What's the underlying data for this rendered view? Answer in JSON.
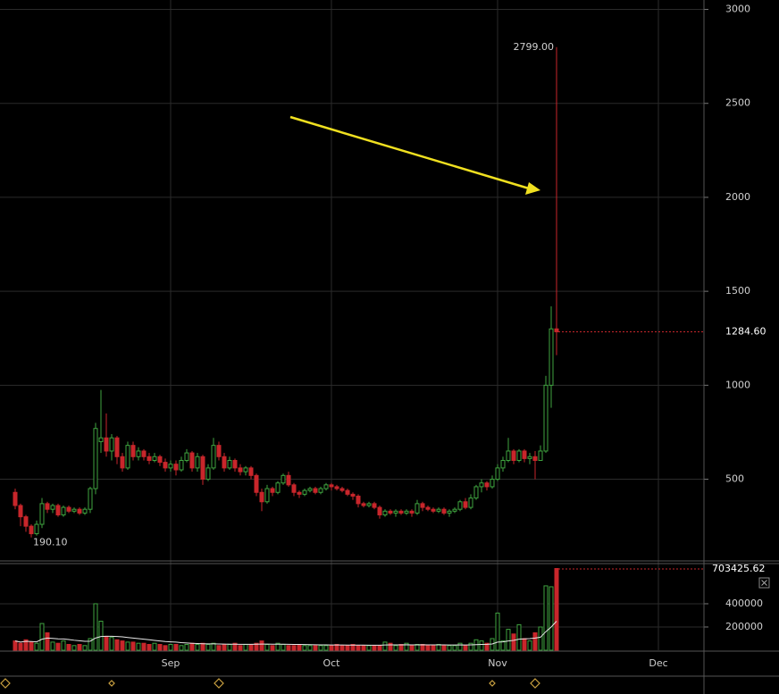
{
  "chart_data": {
    "type": "candlestick",
    "x": [
      0,
      1,
      2,
      3,
      4,
      5,
      6,
      7,
      8,
      9,
      10,
      11,
      12,
      13,
      14,
      15,
      16,
      17,
      18,
      19,
      20,
      21,
      22,
      23,
      24,
      25,
      26,
      27,
      28,
      29,
      30,
      31,
      32,
      33,
      34,
      35,
      36,
      37,
      38,
      39,
      40,
      41,
      42,
      43,
      44,
      45,
      46,
      47,
      48,
      49,
      50,
      51,
      52,
      53,
      54,
      55,
      56,
      57,
      58,
      59,
      60,
      61,
      62,
      63,
      64,
      65,
      66,
      67,
      68,
      69,
      70,
      71,
      72,
      73,
      74,
      75,
      76,
      77,
      78,
      79,
      80,
      81,
      82,
      83,
      84,
      85,
      86,
      87,
      88,
      89,
      90,
      91,
      92,
      93,
      94,
      95,
      96,
      97,
      98,
      99,
      100,
      101
    ],
    "xlim": [
      -2.8333,
      128.5
    ],
    "xticks": [
      {
        "value": 29,
        "label": "Sep"
      },
      {
        "value": 59,
        "label": "Oct"
      },
      {
        "value": 90,
        "label": "Nov"
      },
      {
        "value": 120,
        "label": "Dec"
      }
    ],
    "ylim": [
      70,
      3050
    ],
    "yticks": [
      500,
      1000,
      1500,
      2000,
      2500,
      3000
    ],
    "grid": true,
    "up_color": "#3fa33f",
    "down_color": "#c8262b",
    "open": [
      430,
      360,
      300,
      250,
      210,
      260,
      370,
      340,
      360,
      310,
      350,
      330,
      340,
      320,
      340,
      450,
      700,
      720,
      650,
      720,
      620,
      560,
      680,
      620,
      650,
      620,
      600,
      620,
      590,
      560,
      580,
      550,
      600,
      640,
      560,
      620,
      500,
      560,
      680,
      620,
      560,
      600,
      560,
      540,
      560,
      520,
      430,
      380,
      450,
      430,
      480,
      520,
      470,
      430,
      420,
      440,
      450,
      430,
      450,
      470,
      460,
      450,
      440,
      420,
      410,
      370,
      360,
      370,
      350,
      310,
      330,
      320,
      330,
      320,
      330,
      320,
      370,
      350,
      340,
      330,
      340,
      320,
      330,
      340,
      380,
      350,
      400,
      460,
      480,
      460,
      500,
      560,
      600,
      650,
      600,
      650,
      610,
      620,
      600,
      650,
      1000,
      1300
    ],
    "high": [
      450,
      370,
      310,
      260,
      280,
      400,
      380,
      370,
      370,
      360,
      360,
      350,
      350,
      350,
      460,
      800,
      975,
      850,
      740,
      730,
      640,
      700,
      700,
      670,
      660,
      640,
      640,
      630,
      610,
      600,
      600,
      620,
      660,
      650,
      640,
      630,
      580,
      720,
      700,
      640,
      620,
      610,
      580,
      570,
      570,
      530,
      450,
      470,
      460,
      490,
      530,
      540,
      480,
      440,
      450,
      460,
      460,
      460,
      480,
      480,
      470,
      460,
      450,
      430,
      420,
      380,
      380,
      380,
      360,
      340,
      340,
      340,
      340,
      340,
      340,
      390,
      380,
      360,
      350,
      350,
      350,
      340,
      350,
      390,
      400,
      420,
      470,
      500,
      490,
      520,
      580,
      620,
      720,
      660,
      660,
      660,
      640,
      650,
      680,
      1050,
      1420,
      2799
    ],
    "low": [
      340,
      250,
      220,
      190.1,
      200,
      240,
      320,
      320,
      300,
      300,
      320,
      320,
      310,
      310,
      320,
      420,
      640,
      620,
      600,
      580,
      540,
      550,
      600,
      600,
      600,
      580,
      590,
      570,
      540,
      540,
      520,
      540,
      590,
      540,
      540,
      470,
      490,
      550,
      600,
      540,
      550,
      540,
      520,
      520,
      500,
      410,
      330,
      370,
      410,
      420,
      470,
      460,
      410,
      400,
      410,
      430,
      420,
      420,
      440,
      440,
      440,
      430,
      410,
      390,
      350,
      350,
      350,
      340,
      290,
      300,
      310,
      300,
      310,
      310,
      300,
      310,
      330,
      330,
      320,
      320,
      310,
      300,
      320,
      330,
      340,
      340,
      390,
      430,
      440,
      450,
      490,
      540,
      590,
      580,
      590,
      590,
      580,
      500,
      600,
      640,
      880,
      1160
    ],
    "close": [
      360,
      300,
      250,
      210,
      260,
      370,
      340,
      360,
      310,
      350,
      330,
      340,
      320,
      340,
      450,
      770,
      720,
      650,
      720,
      620,
      560,
      680,
      620,
      650,
      620,
      600,
      620,
      590,
      560,
      580,
      550,
      600,
      640,
      560,
      620,
      500,
      560,
      680,
      620,
      560,
      600,
      560,
      540,
      560,
      520,
      430,
      380,
      450,
      430,
      480,
      520,
      470,
      430,
      420,
      440,
      450,
      430,
      450,
      470,
      460,
      450,
      440,
      420,
      410,
      370,
      360,
      370,
      350,
      310,
      330,
      320,
      330,
      320,
      330,
      320,
      370,
      350,
      340,
      330,
      340,
      320,
      330,
      340,
      380,
      350,
      400,
      460,
      480,
      460,
      500,
      560,
      600,
      650,
      600,
      650,
      610,
      620,
      600,
      650,
      1000,
      1300,
      1284.6
    ],
    "high_label": {
      "value": 2799,
      "label": "2799.00"
    },
    "low_label": {
      "value": 190.1,
      "label": "190.10"
    },
    "last_label": {
      "value": 1284.6,
      "label": "1284.60"
    },
    "volume": {
      "values": [
        80000,
        60000,
        90000,
        70000,
        60000,
        230000,
        150000,
        70000,
        60000,
        80000,
        50000,
        40000,
        50000,
        40000,
        100000,
        400000,
        250000,
        120000,
        110000,
        90000,
        80000,
        70000,
        70000,
        60000,
        60000,
        50000,
        60000,
        50000,
        40000,
        50000,
        50000,
        40000,
        50000,
        60000,
        50000,
        60000,
        50000,
        60000,
        40000,
        50000,
        50000,
        60000,
        40000,
        50000,
        50000,
        60000,
        80000,
        50000,
        40000,
        60000,
        50000,
        40000,
        40000,
        50000,
        40000,
        40000,
        40000,
        40000,
        40000,
        40000,
        50000,
        40000,
        40000,
        50000,
        40000,
        40000,
        40000,
        40000,
        40000,
        70000,
        60000,
        40000,
        50000,
        60000,
        40000,
        50000,
        50000,
        40000,
        40000,
        50000,
        40000,
        40000,
        40000,
        60000,
        40000,
        60000,
        90000,
        80000,
        60000,
        100000,
        320000,
        80000,
        180000,
        140000,
        220000,
        100000,
        80000,
        150000,
        200000,
        554000,
        546000,
        703425.62
      ],
      "ma": [
        80000,
        70000,
        77000,
        75000,
        72000,
        95000,
        105000,
        102000,
        98000,
        97000,
        92000,
        86000,
        82000,
        77000,
        78000,
        105000,
        118000,
        120000,
        120000,
        118000,
        115000,
        110000,
        105000,
        100000,
        95000,
        90000,
        85000,
        80000,
        75000,
        72000,
        70000,
        65000,
        62000,
        60000,
        58000,
        56000,
        55000,
        55000,
        54000,
        53000,
        52000,
        52000,
        51000,
        51000,
        51000,
        52000,
        53000,
        53000,
        52000,
        52000,
        52000,
        51000,
        50000,
        50000,
        49000,
        48000,
        47000,
        46000,
        46000,
        45000,
        45000,
        45000,
        44000,
        44000,
        44000,
        44000,
        43000,
        43000,
        43000,
        45000,
        46000,
        46000,
        46000,
        47000,
        46000,
        46000,
        47000,
        46000,
        46000,
        46000,
        46000,
        45000,
        45000,
        46000,
        45000,
        46000,
        48000,
        50000,
        51000,
        54000,
        70000,
        72000,
        80000,
        85000,
        95000,
        98000,
        100000,
        105000,
        112000,
        160000,
        200000,
        250000
      ],
      "ma_color": "#e8e8e8",
      "ylim": [
        0,
        738000
      ],
      "yticks": [
        200000,
        400000
      ],
      "last_label": 703425.62
    }
  }
}
